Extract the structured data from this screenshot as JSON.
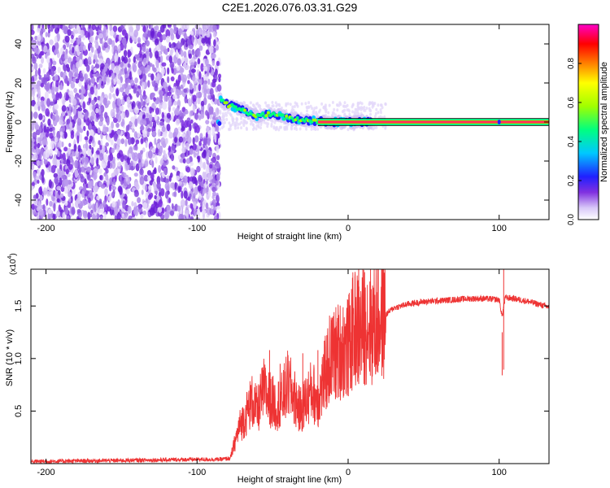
{
  "title": "C2E1.2026.076.03.31.G29",
  "chart_data": [
    {
      "type": "heatmap",
      "name": "spectrogram",
      "xlabel": "Height of straight line (km)",
      "ylabel": "Frequency (Hz)",
      "xlim": [
        -210,
        133
      ],
      "ylim": [
        -50,
        50
      ],
      "xticks": [
        -200,
        -100,
        0,
        100
      ],
      "xtick_labels": [
        "-200",
        "-100",
        "0",
        "100"
      ],
      "yticks": [
        -40,
        -20,
        0,
        20,
        40
      ],
      "ytick_labels": [
        "-40",
        "-20",
        "0",
        "20",
        "40"
      ],
      "noise_region_x": [
        -210,
        -85
      ],
      "signal_track": {
        "x": [
          -85,
          -80,
          -70,
          -60,
          -50,
          -45,
          -40,
          -30,
          -20,
          -10,
          0,
          10,
          133
        ],
        "freq": [
          12,
          9,
          6,
          3,
          4,
          3,
          2,
          1,
          0.5,
          0,
          0,
          0,
          0
        ]
      },
      "colorbar": {
        "label": "Normalized spectral amplitude",
        "range": [
          0,
          1
        ],
        "ticks": [
          0.0,
          0.2,
          0.4,
          0.6,
          0.8
        ],
        "tick_labels": [
          "0.0",
          "0.2",
          "0.4",
          "0.6",
          "0.8"
        ],
        "colors": [
          "#ffffff",
          "#c8b4f0",
          "#7a2be0",
          "#2020ff",
          "#00c8ff",
          "#00ff80",
          "#80ff00",
          "#ffff00",
          "#ff8000",
          "#ff0000",
          "#ff00c8"
        ]
      }
    },
    {
      "type": "line",
      "name": "snr",
      "xlabel": "Height of straight line (km)",
      "ylabel": "SNR (10 * v/v)",
      "scale_label": "(x10",
      "scale_exp": "4",
      "scale_close": ")",
      "xlim": [
        -210,
        133
      ],
      "ylim": [
        0,
        1.85
      ],
      "xticks": [
        -200,
        -100,
        0,
        100
      ],
      "xtick_labels": [
        "-200",
        "-100",
        "0",
        "100"
      ],
      "yticks": [
        0.5,
        1.0,
        1.5
      ],
      "ytick_labels": [
        "0.5",
        "1.0",
        "1.5"
      ],
      "line_color": "#ee3333",
      "x": [
        -210,
        -150,
        -100,
        -85,
        -78,
        -75,
        -72,
        -68,
        -64,
        -60,
        -56,
        -52,
        -48,
        -44,
        -40,
        -36,
        -32,
        -28,
        -24,
        -20,
        -16,
        -12,
        -8,
        -4,
        0,
        4,
        8,
        12,
        16,
        20,
        25,
        30,
        35,
        40,
        50,
        60,
        70,
        80,
        90,
        100,
        102,
        104,
        110,
        120,
        133
      ],
      "y": [
        0.02,
        0.03,
        0.04,
        0.04,
        0.05,
        0.2,
        0.35,
        0.45,
        0.6,
        0.5,
        0.7,
        0.62,
        0.55,
        0.6,
        0.75,
        0.65,
        0.5,
        0.6,
        0.7,
        0.6,
        0.8,
        1.0,
        1.05,
        1.1,
        1.1,
        1.3,
        1.25,
        1.35,
        1.3,
        1.38,
        1.42,
        1.48,
        1.5,
        1.52,
        1.54,
        1.55,
        1.56,
        1.57,
        1.57,
        1.56,
        1.4,
        1.58,
        1.57,
        1.54,
        1.49
      ],
      "spikes": [
        {
          "x": -52,
          "y": 1.08
        },
        {
          "x": -45,
          "y": 0.95
        },
        {
          "x": -30,
          "y": 1.05
        },
        {
          "x": -20,
          "y": 1.08
        },
        {
          "x": -8,
          "y": 1.35
        },
        {
          "x": 2,
          "y": 1.25
        },
        {
          "x": 7,
          "y": 1.85
        },
        {
          "x": 102,
          "y": 1.25
        },
        {
          "x": 103,
          "y": 1.85
        }
      ]
    }
  ]
}
